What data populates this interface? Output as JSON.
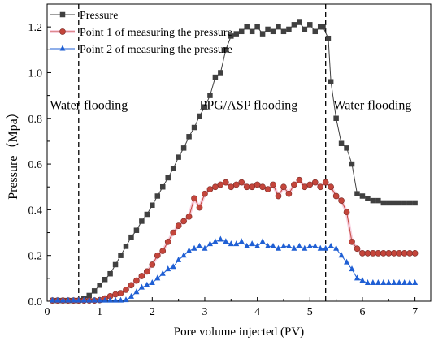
{
  "chart_data": {
    "type": "line",
    "title": "",
    "xlabel": "Pore volume injected (PV)",
    "ylabel": "Pressure（Mpa）",
    "xlim": [
      0,
      7.3
    ],
    "ylim": [
      0,
      1.3
    ],
    "x_ticks": [
      0,
      1,
      2,
      3,
      4,
      5,
      6,
      7
    ],
    "y_ticks": [
      0.0,
      0.2,
      0.4,
      0.6,
      0.8,
      1.0,
      1.2
    ],
    "x_tick_labels": [
      "0",
      "1",
      "2",
      "3",
      "4",
      "5",
      "6",
      "7"
    ],
    "y_tick_labels": [
      "0.0",
      "0.2",
      "0.4",
      "0.6",
      "0.8",
      "1.0",
      "1.2"
    ],
    "grid": false,
    "legend_position": "top-left",
    "vlines": [
      0.6,
      5.3
    ],
    "annotations": [
      {
        "text": "Water flooding",
        "x": 0.05,
        "y": 0.84
      },
      {
        "text": "PPG/ASP flooding",
        "x": 2.9,
        "y": 0.84
      },
      {
        "text": "Water flooding",
        "x": 5.45,
        "y": 0.84
      }
    ],
    "series": [
      {
        "name": "Pressure",
        "color": "#404040",
        "marker": "square",
        "points": [
          [
            0.1,
            0.003
          ],
          [
            0.2,
            0.003
          ],
          [
            0.3,
            0.003
          ],
          [
            0.4,
            0.003
          ],
          [
            0.5,
            0.003
          ],
          [
            0.6,
            0.003
          ],
          [
            0.7,
            0.01
          ],
          [
            0.8,
            0.025
          ],
          [
            0.9,
            0.045
          ],
          [
            1.0,
            0.07
          ],
          [
            1.1,
            0.095
          ],
          [
            1.2,
            0.12
          ],
          [
            1.3,
            0.16
          ],
          [
            1.4,
            0.2
          ],
          [
            1.5,
            0.24
          ],
          [
            1.6,
            0.28
          ],
          [
            1.7,
            0.31
          ],
          [
            1.8,
            0.35
          ],
          [
            1.9,
            0.38
          ],
          [
            2.0,
            0.42
          ],
          [
            2.1,
            0.46
          ],
          [
            2.2,
            0.5
          ],
          [
            2.3,
            0.54
          ],
          [
            2.4,
            0.58
          ],
          [
            2.5,
            0.63
          ],
          [
            2.6,
            0.67
          ],
          [
            2.7,
            0.72
          ],
          [
            2.8,
            0.76
          ],
          [
            2.9,
            0.81
          ],
          [
            3.0,
            0.85
          ],
          [
            3.1,
            0.9
          ],
          [
            3.2,
            0.98
          ],
          [
            3.3,
            1.0
          ],
          [
            3.4,
            1.1
          ],
          [
            3.5,
            1.16
          ],
          [
            3.6,
            1.17
          ],
          [
            3.7,
            1.18
          ],
          [
            3.8,
            1.2
          ],
          [
            3.9,
            1.18
          ],
          [
            4.0,
            1.2
          ],
          [
            4.1,
            1.17
          ],
          [
            4.2,
            1.19
          ],
          [
            4.3,
            1.18
          ],
          [
            4.4,
            1.2
          ],
          [
            4.5,
            1.18
          ],
          [
            4.6,
            1.19
          ],
          [
            4.7,
            1.21
          ],
          [
            4.8,
            1.22
          ],
          [
            4.9,
            1.19
          ],
          [
            5.0,
            1.21
          ],
          [
            5.1,
            1.18
          ],
          [
            5.2,
            1.2
          ],
          [
            5.25,
            1.2
          ],
          [
            5.35,
            1.15
          ],
          [
            5.4,
            0.96
          ],
          [
            5.5,
            0.8
          ],
          [
            5.6,
            0.69
          ],
          [
            5.7,
            0.67
          ],
          [
            5.8,
            0.6
          ],
          [
            5.9,
            0.47
          ],
          [
            6.0,
            0.46
          ],
          [
            6.1,
            0.45
          ],
          [
            6.2,
            0.44
          ],
          [
            6.3,
            0.44
          ],
          [
            6.4,
            0.43
          ],
          [
            6.5,
            0.43
          ],
          [
            6.6,
            0.43
          ],
          [
            6.7,
            0.43
          ],
          [
            6.8,
            0.43
          ],
          [
            6.9,
            0.43
          ],
          [
            7.0,
            0.43
          ]
        ]
      },
      {
        "name": "Point 1 of measuring the pressure",
        "color": "#c4453b",
        "marker": "circle",
        "points": [
          [
            0.1,
            0.003
          ],
          [
            0.2,
            0.003
          ],
          [
            0.3,
            0.003
          ],
          [
            0.4,
            0.003
          ],
          [
            0.5,
            0.003
          ],
          [
            0.6,
            0.003
          ],
          [
            0.7,
            0.003
          ],
          [
            0.8,
            0.003
          ],
          [
            0.9,
            0.003
          ],
          [
            1.0,
            0.005
          ],
          [
            1.1,
            0.012
          ],
          [
            1.2,
            0.022
          ],
          [
            1.3,
            0.03
          ],
          [
            1.4,
            0.035
          ],
          [
            1.5,
            0.05
          ],
          [
            1.6,
            0.07
          ],
          [
            1.7,
            0.09
          ],
          [
            1.8,
            0.11
          ],
          [
            1.9,
            0.13
          ],
          [
            2.0,
            0.16
          ],
          [
            2.1,
            0.2
          ],
          [
            2.2,
            0.22
          ],
          [
            2.3,
            0.26
          ],
          [
            2.4,
            0.3
          ],
          [
            2.5,
            0.33
          ],
          [
            2.6,
            0.35
          ],
          [
            2.7,
            0.37
          ],
          [
            2.8,
            0.45
          ],
          [
            2.9,
            0.41
          ],
          [
            3.0,
            0.47
          ],
          [
            3.1,
            0.49
          ],
          [
            3.2,
            0.5
          ],
          [
            3.3,
            0.51
          ],
          [
            3.4,
            0.52
          ],
          [
            3.5,
            0.5
          ],
          [
            3.6,
            0.51
          ],
          [
            3.7,
            0.52
          ],
          [
            3.8,
            0.5
          ],
          [
            3.9,
            0.5
          ],
          [
            4.0,
            0.51
          ],
          [
            4.1,
            0.5
          ],
          [
            4.2,
            0.49
          ],
          [
            4.3,
            0.51
          ],
          [
            4.4,
            0.46
          ],
          [
            4.5,
            0.5
          ],
          [
            4.6,
            0.47
          ],
          [
            4.7,
            0.51
          ],
          [
            4.8,
            0.53
          ],
          [
            4.9,
            0.5
          ],
          [
            5.0,
            0.51
          ],
          [
            5.1,
            0.52
          ],
          [
            5.2,
            0.5
          ],
          [
            5.3,
            0.52
          ],
          [
            5.4,
            0.5
          ],
          [
            5.5,
            0.46
          ],
          [
            5.6,
            0.44
          ],
          [
            5.7,
            0.39
          ],
          [
            5.8,
            0.26
          ],
          [
            5.9,
            0.23
          ],
          [
            6.0,
            0.21
          ],
          [
            6.1,
            0.21
          ],
          [
            6.2,
            0.21
          ],
          [
            6.3,
            0.21
          ],
          [
            6.4,
            0.21
          ],
          [
            6.5,
            0.21
          ],
          [
            6.6,
            0.21
          ],
          [
            6.7,
            0.21
          ],
          [
            6.8,
            0.21
          ],
          [
            6.9,
            0.21
          ],
          [
            7.0,
            0.21
          ]
        ]
      },
      {
        "name": "Point 2 of measuring the pressure",
        "color": "#1f5fd4",
        "marker": "triangle",
        "points": [
          [
            0.1,
            0.003
          ],
          [
            0.2,
            0.003
          ],
          [
            0.3,
            0.003
          ],
          [
            0.4,
            0.003
          ],
          [
            0.5,
            0.003
          ],
          [
            0.6,
            0.003
          ],
          [
            0.7,
            0.003
          ],
          [
            0.8,
            0.003
          ],
          [
            0.9,
            0.003
          ],
          [
            1.0,
            0.003
          ],
          [
            1.1,
            0.003
          ],
          [
            1.2,
            0.003
          ],
          [
            1.3,
            0.003
          ],
          [
            1.4,
            0.003
          ],
          [
            1.5,
            0.005
          ],
          [
            1.6,
            0.02
          ],
          [
            1.7,
            0.04
          ],
          [
            1.8,
            0.06
          ],
          [
            1.9,
            0.07
          ],
          [
            2.0,
            0.08
          ],
          [
            2.1,
            0.1
          ],
          [
            2.2,
            0.12
          ],
          [
            2.3,
            0.14
          ],
          [
            2.4,
            0.15
          ],
          [
            2.5,
            0.18
          ],
          [
            2.6,
            0.2
          ],
          [
            2.7,
            0.22
          ],
          [
            2.8,
            0.23
          ],
          [
            2.9,
            0.24
          ],
          [
            3.0,
            0.23
          ],
          [
            3.1,
            0.25
          ],
          [
            3.2,
            0.26
          ],
          [
            3.3,
            0.27
          ],
          [
            3.4,
            0.26
          ],
          [
            3.5,
            0.25
          ],
          [
            3.6,
            0.25
          ],
          [
            3.7,
            0.26
          ],
          [
            3.8,
            0.24
          ],
          [
            3.9,
            0.25
          ],
          [
            4.0,
            0.24
          ],
          [
            4.1,
            0.26
          ],
          [
            4.2,
            0.24
          ],
          [
            4.3,
            0.24
          ],
          [
            4.4,
            0.23
          ],
          [
            4.5,
            0.24
          ],
          [
            4.6,
            0.24
          ],
          [
            4.7,
            0.23
          ],
          [
            4.8,
            0.24
          ],
          [
            4.9,
            0.23
          ],
          [
            5.0,
            0.24
          ],
          [
            5.1,
            0.24
          ],
          [
            5.2,
            0.23
          ],
          [
            5.3,
            0.23
          ],
          [
            5.4,
            0.24
          ],
          [
            5.5,
            0.23
          ],
          [
            5.6,
            0.2
          ],
          [
            5.7,
            0.17
          ],
          [
            5.8,
            0.14
          ],
          [
            5.9,
            0.1
          ],
          [
            6.0,
            0.09
          ],
          [
            6.1,
            0.08
          ],
          [
            6.2,
            0.08
          ],
          [
            6.3,
            0.08
          ],
          [
            6.4,
            0.08
          ],
          [
            6.5,
            0.08
          ],
          [
            6.6,
            0.08
          ],
          [
            6.7,
            0.08
          ],
          [
            6.8,
            0.08
          ],
          [
            6.9,
            0.08
          ],
          [
            7.0,
            0.08
          ]
        ]
      }
    ]
  }
}
